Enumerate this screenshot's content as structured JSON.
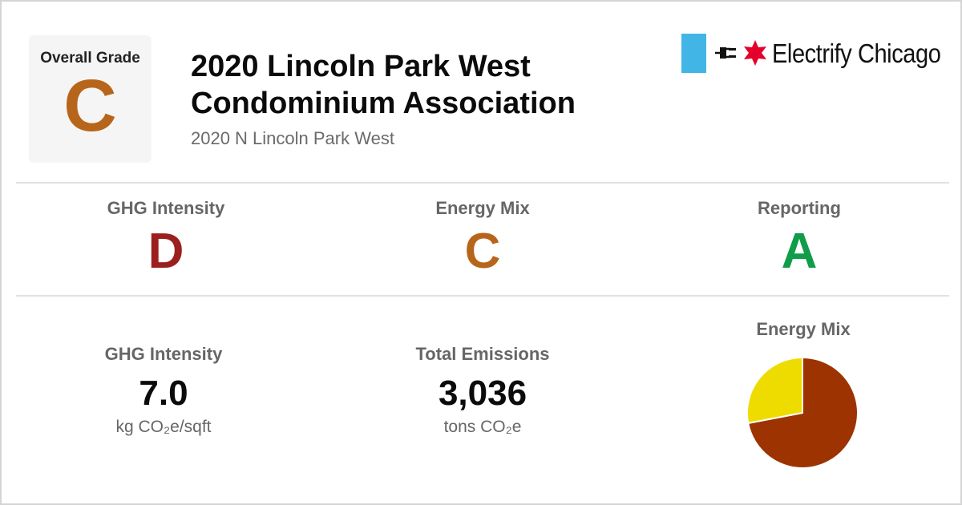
{
  "overall": {
    "label": "Overall Grade",
    "grade": "C",
    "grade_color": "#b8651c"
  },
  "building": {
    "name_line1": "2020 Lincoln Park West",
    "name_line2": "Condominium Association",
    "address": "2020 N Lincoln Park West"
  },
  "brand": {
    "name": "Electrify Chicago",
    "bar_color": "#41b6e6",
    "star_color": "#e4002b",
    "plug_icon": "plug-icon",
    "star_icon": "star-icon"
  },
  "grades": [
    {
      "label": "GHG Intensity",
      "grade": "D",
      "color": "#9b1f1f"
    },
    {
      "label": "Energy Mix",
      "grade": "C",
      "color": "#b8651c"
    },
    {
      "label": "Reporting",
      "grade": "A",
      "color": "#0f9d4a"
    }
  ],
  "metrics": [
    {
      "label": "GHG Intensity",
      "value": "7.0",
      "unit": "kg CO₂e/sqft"
    },
    {
      "label": "Total Emissions",
      "value": "3,036",
      "unit": "tons CO₂e"
    }
  ],
  "chart_data": {
    "type": "pie",
    "title": "Energy Mix",
    "slices": [
      {
        "value": 72,
        "color": "#9c3300"
      },
      {
        "value": 28,
        "color": "#eedc00"
      }
    ]
  }
}
